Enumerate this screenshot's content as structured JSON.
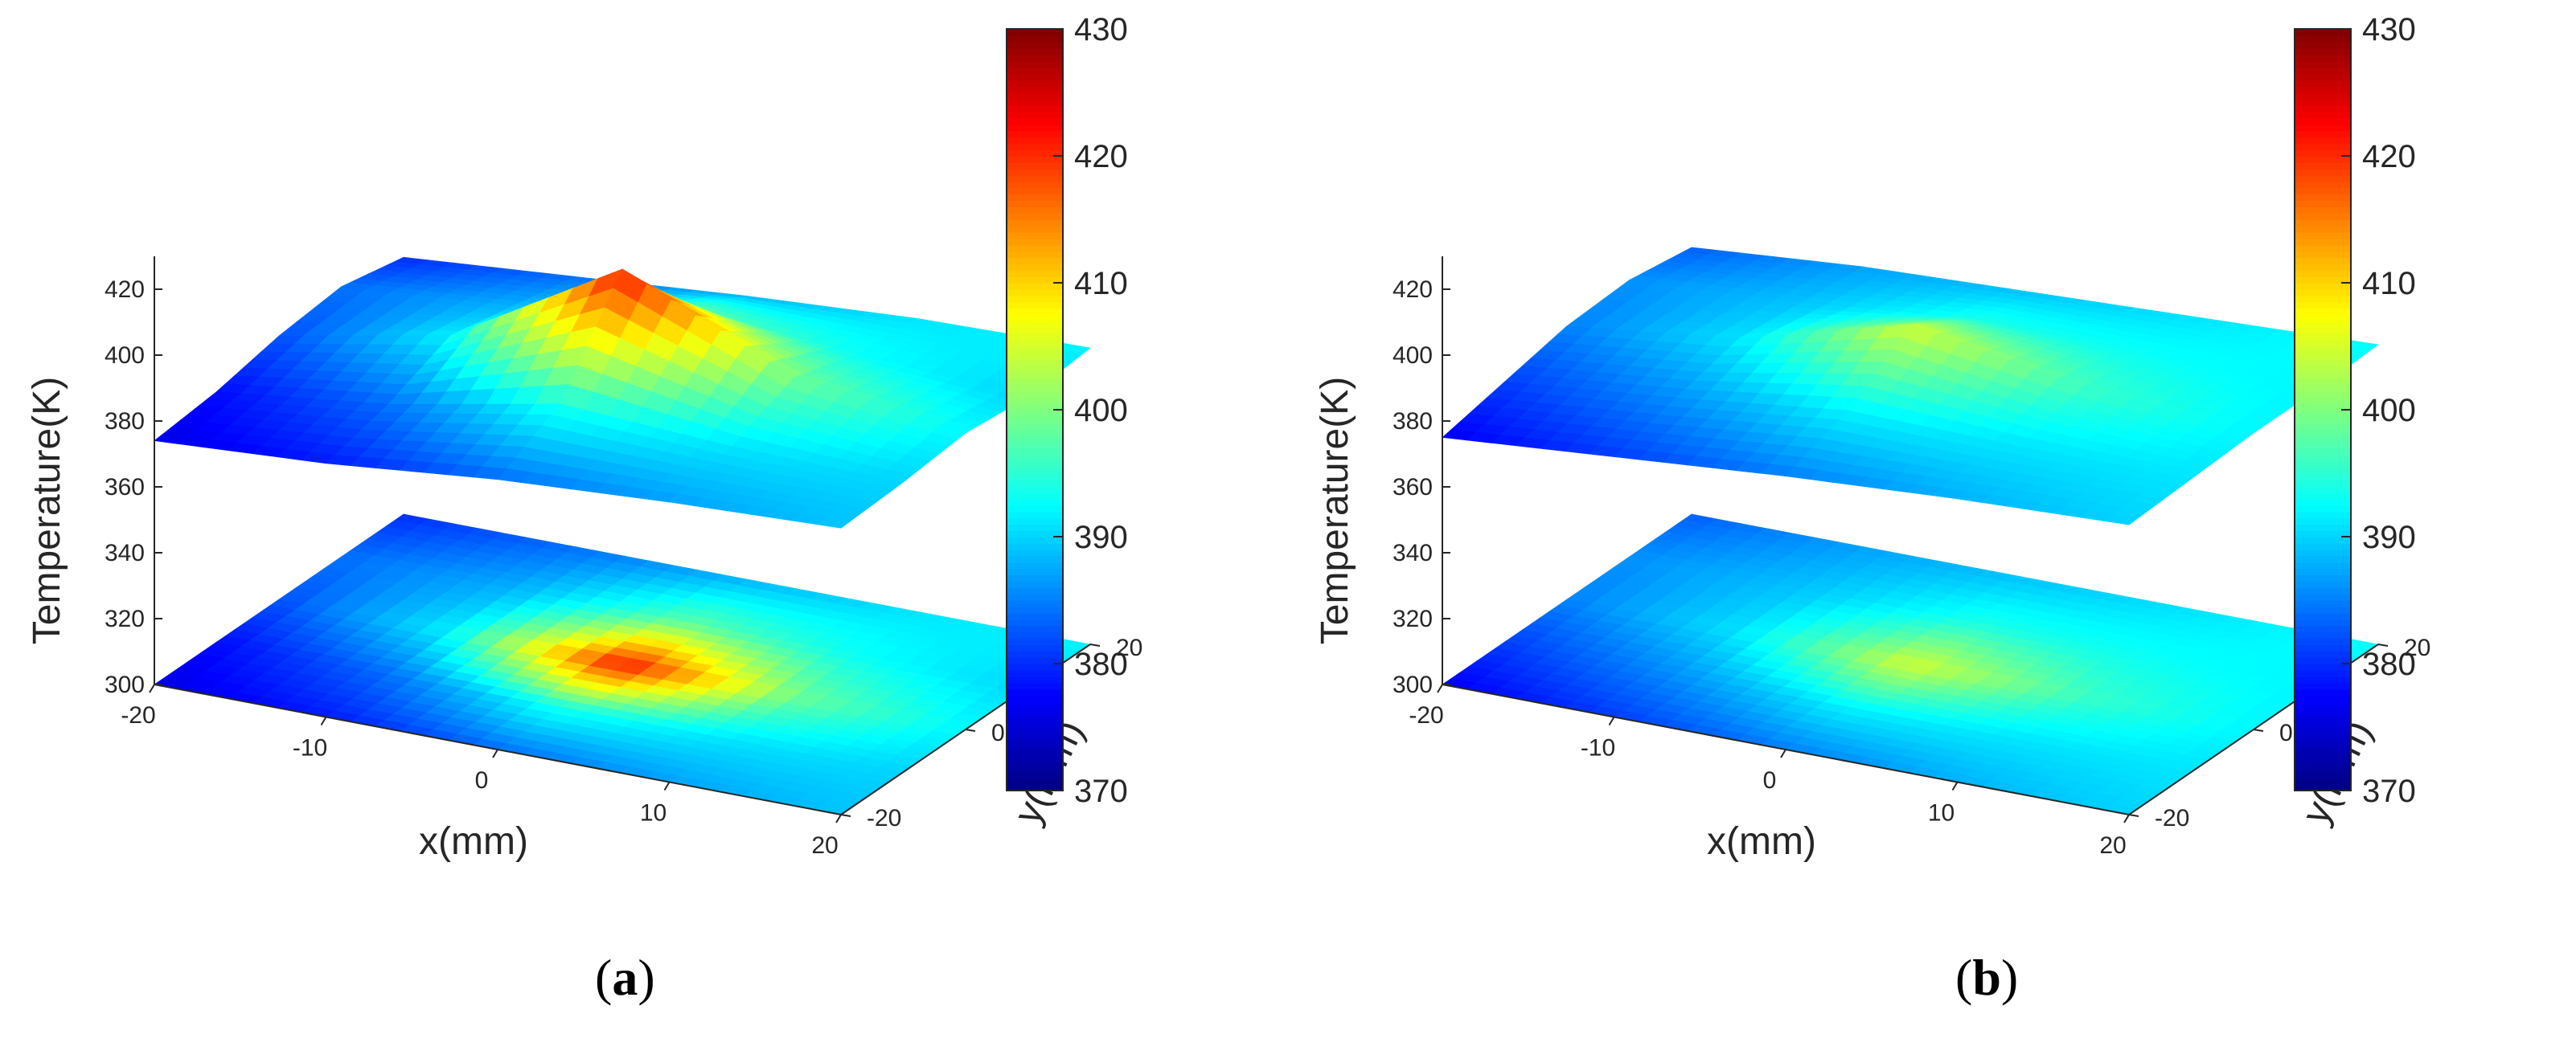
{
  "chart_data": [
    {
      "panel": "a",
      "type": "surface3d",
      "caption": "a",
      "xlabel": "x(mm)",
      "ylabel": "y(mm)",
      "zlabel": "Temperature(K)",
      "xticks": [
        -20,
        -10,
        0,
        10,
        20
      ],
      "yticks": [
        -20,
        0,
        20
      ],
      "zticks": [
        300,
        320,
        340,
        360,
        380,
        400,
        420
      ],
      "xlim": [
        -20,
        20
      ],
      "ylim": [
        -20,
        20
      ],
      "zlim": [
        300,
        430
      ],
      "colorbar": {
        "min": 370,
        "max": 430,
        "ticks": [
          370,
          380,
          390,
          400,
          410,
          420,
          430
        ],
        "colormap": "jet"
      },
      "surface": {
        "x": [
          -20,
          -10,
          0,
          10,
          20
        ],
        "y": [
          -20,
          -10,
          0,
          10,
          20
        ],
        "z": [
          [
            376,
            379,
            384,
            387,
            389
          ],
          [
            378,
            384,
            394,
            391,
            390
          ],
          [
            382,
            392,
            422,
            399,
            392
          ],
          [
            384,
            388,
            398,
            393,
            390
          ],
          [
            380,
            384,
            388,
            391,
            392
          ]
        ]
      }
    },
    {
      "panel": "b",
      "type": "surface3d",
      "caption": "b",
      "xlabel": "x(mm)",
      "ylabel": "y(mm)",
      "zlabel": "Temperature(K)",
      "xticks": [
        -20,
        -10,
        0,
        10,
        20
      ],
      "yticks": [
        -20,
        0,
        20
      ],
      "zticks": [
        300,
        320,
        340,
        360,
        380,
        400,
        420
      ],
      "xlim": [
        -20,
        20
      ],
      "ylim": [
        -20,
        20
      ],
      "zlim": [
        300,
        430
      ],
      "colorbar": {
        "min": 370,
        "max": 430,
        "ticks": [
          370,
          380,
          390,
          400,
          410,
          420,
          430
        ],
        "colormap": "jet"
      },
      "surface": {
        "x": [
          -20,
          -10,
          0,
          10,
          20
        ],
        "y": [
          -20,
          -10,
          0,
          10,
          20
        ],
        "z": [
          [
            377,
            381,
            385,
            388,
            390
          ],
          [
            381,
            386,
            392,
            391,
            391
          ],
          [
            385,
            391,
            405,
            396,
            392
          ],
          [
            386,
            389,
            394,
            393,
            392
          ],
          [
            383,
            387,
            389,
            391,
            393
          ]
        ]
      }
    }
  ]
}
